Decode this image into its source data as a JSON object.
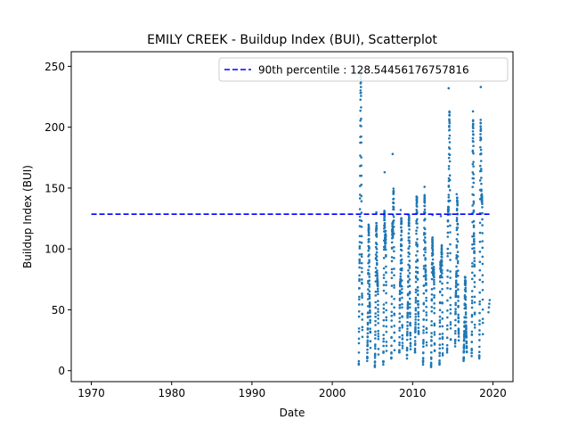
{
  "chart_data": {
    "type": "scatter",
    "title": "EMILY CREEK - Buildup Index (BUI), Scatterplot",
    "xlabel": "Date",
    "ylabel": "Buildup Index (BUI)",
    "xlim": [
      1967.5,
      2022.5
    ],
    "ylim": [
      -9.0,
      262.0
    ],
    "x_ticks": [
      1970,
      1980,
      1990,
      2000,
      2010,
      2020
    ],
    "y_ticks": [
      0,
      50,
      100,
      150,
      200,
      250
    ],
    "grid": false,
    "legend_position": "top-right",
    "colors": {
      "points": "#1f77b4",
      "percentile_line": "#0000ff",
      "axes": "#000000"
    },
    "reference_line": {
      "label": "90th percentile : 128.54456176757816",
      "value": 128.54456176757816,
      "x_range": [
        1970,
        2019.7
      ],
      "style": "dashed"
    },
    "series": [
      {
        "marker": "dot",
        "seasons": [
          {
            "year": 2003,
            "start": 2003.3,
            "end": 2003.75,
            "min": 5,
            "peak": 245
          },
          {
            "year": 2004,
            "start": 2004.35,
            "end": 2004.75,
            "min": 8,
            "peak": 120
          },
          {
            "year": 2005,
            "start": 2005.3,
            "end": 2005.75,
            "min": 3,
            "peak": 130
          },
          {
            "year": 2006,
            "start": 2006.35,
            "end": 2006.75,
            "min": 5,
            "peak": 163
          },
          {
            "year": 2007,
            "start": 2007.35,
            "end": 2007.75,
            "min": 10,
            "peak": 178
          },
          {
            "year": 2008,
            "start": 2008.35,
            "end": 2008.75,
            "min": 15,
            "peak": 132
          },
          {
            "year": 2009,
            "start": 2009.3,
            "end": 2009.75,
            "min": 10,
            "peak": 128
          },
          {
            "year": 2010,
            "start": 2010.3,
            "end": 2010.75,
            "min": 15,
            "peak": 143
          },
          {
            "year": 2011,
            "start": 2011.3,
            "end": 2011.75,
            "min": 5,
            "peak": 151
          },
          {
            "year": 2012,
            "start": 2012.3,
            "end": 2012.75,
            "min": 3,
            "peak": 128
          },
          {
            "year": 2013,
            "start": 2013.35,
            "end": 2013.75,
            "min": 5,
            "peak": 127
          },
          {
            "year": 2014,
            "start": 2014.3,
            "end": 2014.75,
            "min": 15,
            "peak": 232
          },
          {
            "year": 2015,
            "start": 2015.3,
            "end": 2015.75,
            "min": 20,
            "peak": 145
          },
          {
            "year": 2016,
            "start": 2016.35,
            "end": 2016.75,
            "min": 8,
            "peak": 77
          },
          {
            "year": 2017,
            "start": 2017.35,
            "end": 2017.75,
            "min": 12,
            "peak": 213
          },
          {
            "year": 2018,
            "start": 2018.3,
            "end": 2018.75,
            "min": 10,
            "peak": 233
          }
        ],
        "extra_points": [
          {
            "x": 2019.45,
            "y": 48
          },
          {
            "x": 2019.5,
            "y": 52
          },
          {
            "x": 2019.55,
            "y": 55
          },
          {
            "x": 2019.6,
            "y": 58
          }
        ]
      }
    ]
  }
}
